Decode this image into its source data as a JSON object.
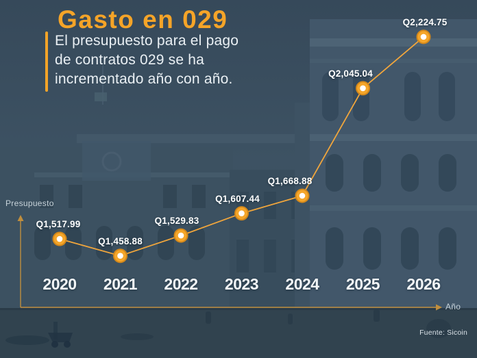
{
  "header": {
    "title": "Gasto en 029",
    "subtitle_lines": [
      "El presupuesto para el pago",
      "de contratos 029 se ha",
      "incrementado año con año."
    ]
  },
  "chart_data": {
    "type": "line",
    "title": "Gasto en 029",
    "categories": [
      "2020",
      "2021",
      "2022",
      "2023",
      "2024",
      "2025",
      "2026"
    ],
    "values": [
      1517.99,
      1458.88,
      1529.83,
      1607.44,
      1668.88,
      2045.04,
      2224.75
    ],
    "point_labels": [
      "Q1,517.99",
      "Q1,458.88",
      "Q1,529.83",
      "Q1,607.44",
      "Q1,668.88",
      "Q2,045.04",
      "Q2,224.75"
    ],
    "xlabel": "Año",
    "ylabel": "Presupuesto",
    "currency_prefix": "Q",
    "grid": false,
    "legend": "none",
    "line_color": "#f1a63c",
    "marker_ring_color": "#f5a62a",
    "marker_rim_color": "#d4881a",
    "marker_center_color": "#ffffff",
    "axis_color": "#c08e3d"
  },
  "footer": {
    "source": "Fuente: Sicoin"
  },
  "colors": {
    "accent_orange": "#f5a428",
    "background_slate": "#3a4f5f",
    "text_light": "#eaf0f4",
    "tick_text": "#c7d3da"
  }
}
